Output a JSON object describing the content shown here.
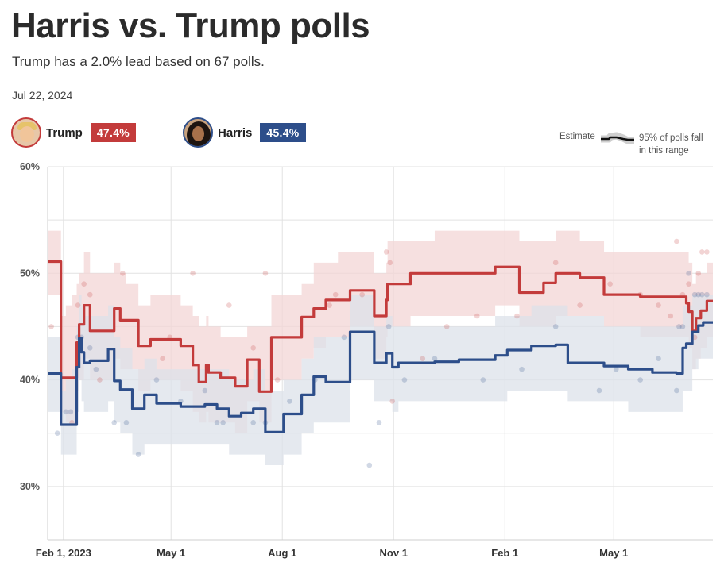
{
  "header": {
    "title": "Harris vs. Trump polls",
    "subtitle": "Trump has a 2.0% lead based on 67 polls.",
    "date": "Jul 22, 2024"
  },
  "candidates": [
    {
      "name": "Trump",
      "value": "47.4%",
      "color": "#c33b3b"
    },
    {
      "name": "Harris",
      "value": "45.4%",
      "color": "#2d4e8a"
    }
  ],
  "legend": {
    "estimate_label": "Estimate",
    "range_label_line1": "95% of polls fall",
    "range_label_line2": "in this range"
  },
  "chart_data": {
    "type": "line",
    "title": "Harris vs. Trump polls",
    "ylabel": "",
    "xlabel": "",
    "ylim": [
      25,
      60
    ],
    "yticks": [
      30,
      40,
      50,
      60
    ],
    "ytick_labels": [
      "30%",
      "40%",
      "50%",
      "60%"
    ],
    "xlim": [
      0,
      550
    ],
    "xticks": [
      {
        "day": 13,
        "label": "Feb 1, 2023"
      },
      {
        "day": 102,
        "label": "May 1"
      }
    ],
    "xticks_more": [
      {
        "day": 194,
        "label": "Aug 1"
      },
      {
        "day": 286,
        "label": "Nov 1"
      },
      {
        "day": 378,
        "label": "Feb 1"
      },
      {
        "day": 468,
        "label": "May 1"
      }
    ],
    "series": [
      {
        "name": "Trump",
        "color": "#c33b3b",
        "band_color": "#f3d6d6",
        "x": [
          0,
          9,
          11,
          12,
          15,
          20,
          24,
          26,
          28,
          30,
          35,
          40,
          50,
          55,
          60,
          65,
          75,
          85,
          100,
          110,
          120,
          125,
          131,
          133,
          138,
          143,
          155,
          165,
          175,
          185,
          195,
          200,
          210,
          220,
          230,
          240,
          250,
          260,
          270,
          280,
          281,
          285,
          292,
          300,
          310,
          320,
          330,
          350,
          370,
          390,
          400,
          410,
          420,
          440,
          460,
          475,
          490,
          520,
          528,
          530,
          533,
          536,
          540,
          545,
          550
        ],
        "values": [
          51.1,
          51.1,
          40.2,
          40.2,
          40.2,
          40.2,
          43.5,
          45.2,
          45.2,
          47.0,
          44.6,
          44.6,
          44.6,
          46.7,
          45.6,
          45.6,
          43.2,
          43.8,
          43.8,
          43.2,
          41.4,
          39.8,
          41.4,
          40.7,
          40.7,
          40.2,
          39.4,
          41.9,
          38.9,
          44.0,
          44.0,
          44.0,
          45.9,
          46.7,
          47.5,
          47.5,
          48.4,
          48.4,
          46.0,
          47.5,
          49.0,
          49.0,
          49.0,
          50.0,
          50.0,
          50.0,
          50.0,
          50.0,
          50.6,
          48.2,
          48.2,
          49.1,
          50.0,
          49.6,
          48.0,
          48.0,
          47.8,
          47.8,
          47.2,
          46.4,
          44.6,
          45.8,
          46.5,
          47.4,
          47.4
        ],
        "band_upper": [
          54,
          54,
          46,
          46,
          47,
          48,
          49,
          50,
          50,
          52,
          50,
          50,
          50,
          51,
          50,
          49,
          47,
          48,
          48,
          47,
          46,
          45,
          46,
          45,
          45,
          44,
          44,
          45,
          45,
          48,
          48,
          48,
          49,
          51,
          51,
          52,
          52,
          52,
          50,
          51,
          53,
          53,
          53,
          53,
          53,
          54,
          54,
          54,
          54,
          53,
          53,
          53,
          54,
          53,
          52,
          52,
          52,
          52,
          52,
          51,
          49,
          50,
          50,
          51,
          51
        ],
        "band_lower": [
          48,
          48,
          37,
          37,
          36,
          36,
          39,
          40,
          40,
          42,
          40,
          40,
          40,
          42,
          41,
          41,
          39,
          40,
          40,
          39,
          37,
          36,
          37,
          36,
          36,
          36,
          35,
          38,
          36,
          40,
          40,
          40,
          42,
          43,
          44,
          44,
          45,
          45,
          42,
          44,
          45,
          45,
          45,
          46,
          46,
          46,
          46,
          46,
          47,
          45,
          45,
          45,
          46,
          46,
          45,
          45,
          44,
          44,
          44,
          43,
          41,
          42,
          43,
          44,
          44
        ]
      },
      {
        "name": "Harris",
        "color": "#2d4e8a",
        "band_color": "#dce2ea",
        "x": [
          0,
          9,
          11,
          12,
          15,
          20,
          24,
          26,
          28,
          30,
          35,
          40,
          50,
          55,
          60,
          70,
          80,
          90,
          100,
          110,
          130,
          140,
          150,
          160,
          170,
          180,
          195,
          200,
          210,
          220,
          230,
          250,
          270,
          280,
          285,
          290,
          300,
          320,
          340,
          370,
          380,
          390,
          400,
          410,
          420,
          430,
          440,
          460,
          480,
          500,
          520,
          525,
          528,
          533,
          538,
          542,
          550
        ],
        "values": [
          40.6,
          40.6,
          35.8,
          35.8,
          35.8,
          35.8,
          41.2,
          43.9,
          42.6,
          41.6,
          41.8,
          41.8,
          42.9,
          39.9,
          39.1,
          37.3,
          38.6,
          37.8,
          37.8,
          37.5,
          37.7,
          37.3,
          36.6,
          36.9,
          37.3,
          35.1,
          36.8,
          36.8,
          38.6,
          40.3,
          39.8,
          44.5,
          41.6,
          42.5,
          41.2,
          41.6,
          41.6,
          41.7,
          41.9,
          42.3,
          42.8,
          42.8,
          43.2,
          43.2,
          43.3,
          41.6,
          41.6,
          41.3,
          41.0,
          40.7,
          40.6,
          43.0,
          43.4,
          44.5,
          45.1,
          45.4,
          45.4
        ],
        "band_upper": [
          44,
          44,
          39,
          39,
          40,
          41,
          45,
          48,
          47,
          46,
          46,
          46,
          47,
          44,
          43,
          41,
          42,
          41,
          41,
          41,
          41,
          41,
          40,
          40,
          41,
          39,
          40,
          40,
          42,
          44,
          44,
          48,
          45,
          46,
          45,
          45,
          45,
          45,
          45,
          46,
          46,
          46,
          47,
          47,
          47,
          46,
          46,
          45,
          45,
          45,
          45,
          47,
          47,
          48,
          48,
          48,
          48
        ],
        "band_lower": [
          37,
          37,
          33,
          33,
          33,
          33,
          37,
          40,
          38,
          37,
          37,
          37,
          38,
          36,
          35,
          33,
          34,
          34,
          34,
          34,
          34,
          34,
          33,
          33,
          33,
          32,
          33,
          33,
          35,
          36,
          36,
          40,
          38,
          38,
          37,
          38,
          38,
          38,
          38,
          38,
          39,
          39,
          39,
          39,
          39,
          38,
          38,
          38,
          37,
          37,
          37,
          39,
          39,
          41,
          42,
          42,
          42
        ]
      }
    ],
    "polls": {
      "Trump": [
        [
          3,
          45
        ],
        [
          20,
          36
        ],
        [
          25,
          47
        ],
        [
          30,
          49
        ],
        [
          35,
          48
        ],
        [
          43,
          40
        ],
        [
          62,
          50
        ],
        [
          95,
          42
        ],
        [
          101,
          44
        ],
        [
          120,
          50
        ],
        [
          150,
          47
        ],
        [
          170,
          43
        ],
        [
          180,
          50
        ],
        [
          190,
          40
        ],
        [
          233,
          47
        ],
        [
          238,
          48
        ],
        [
          260,
          48
        ],
        [
          280,
          52
        ],
        [
          283,
          51
        ],
        [
          285,
          38
        ],
        [
          310,
          42
        ],
        [
          330,
          45
        ],
        [
          355,
          46
        ],
        [
          388,
          46
        ],
        [
          420,
          51
        ],
        [
          440,
          47
        ],
        [
          465,
          49
        ],
        [
          490,
          48
        ],
        [
          505,
          47
        ],
        [
          515,
          46
        ],
        [
          520,
          53
        ],
        [
          525,
          48
        ],
        [
          530,
          49
        ],
        [
          535,
          44
        ],
        [
          538,
          50
        ],
        [
          541,
          52
        ],
        [
          545,
          52
        ]
      ],
      "Harris": [
        [
          8,
          35
        ],
        [
          15,
          37
        ],
        [
          19,
          37
        ],
        [
          25,
          44
        ],
        [
          28,
          44
        ],
        [
          35,
          43
        ],
        [
          40,
          41
        ],
        [
          55,
          36
        ],
        [
          65,
          36
        ],
        [
          75,
          33
        ],
        [
          90,
          40
        ],
        [
          110,
          38
        ],
        [
          130,
          39
        ],
        [
          140,
          36
        ],
        [
          145,
          36
        ],
        [
          170,
          36
        ],
        [
          180,
          36
        ],
        [
          200,
          38
        ],
        [
          221,
          40
        ],
        [
          245,
          44
        ],
        [
          266,
          32
        ],
        [
          274,
          36
        ],
        [
          282,
          45
        ],
        [
          295,
          40
        ],
        [
          320,
          42
        ],
        [
          360,
          40
        ],
        [
          392,
          41
        ],
        [
          420,
          45
        ],
        [
          456,
          39
        ],
        [
          470,
          41
        ],
        [
          490,
          40
        ],
        [
          505,
          42
        ],
        [
          520,
          39
        ],
        [
          522,
          45
        ],
        [
          525,
          45
        ],
        [
          530,
          50
        ],
        [
          535,
          48
        ],
        [
          538,
          48
        ],
        [
          541,
          48
        ],
        [
          545,
          48
        ]
      ]
    }
  }
}
